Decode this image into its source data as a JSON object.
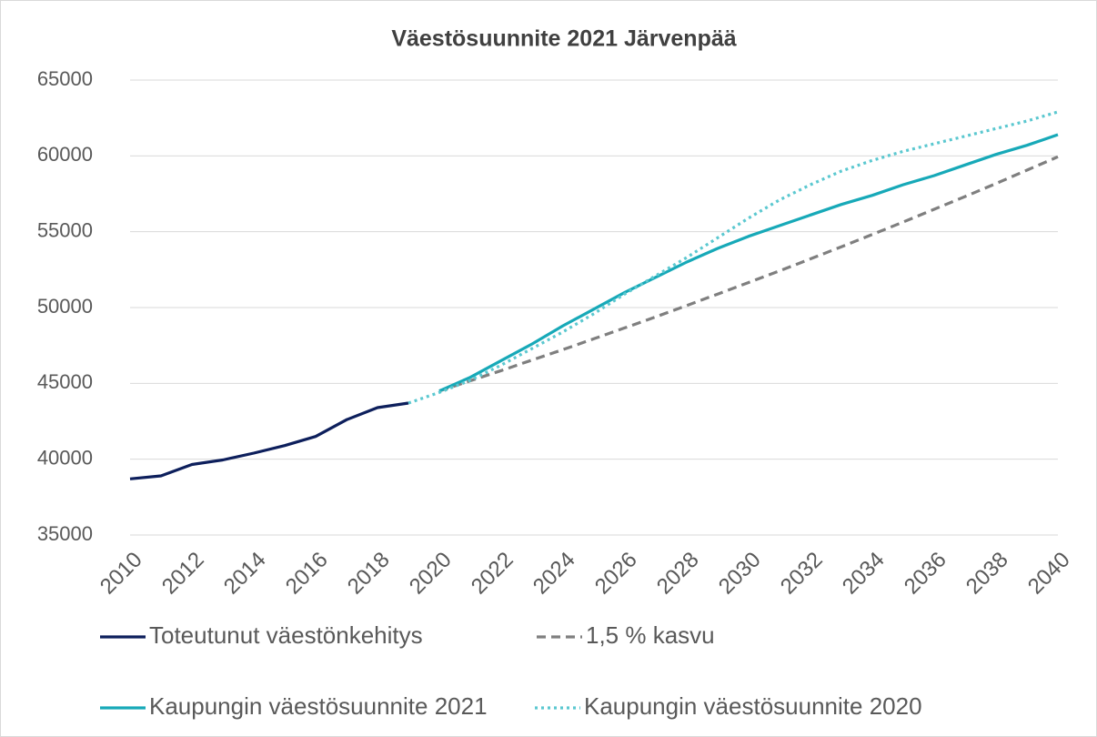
{
  "chart_data": {
    "type": "line",
    "title": "Väestösuunnite 2021 Järvenpää",
    "x": [
      2010,
      2011,
      2012,
      2013,
      2014,
      2015,
      2016,
      2017,
      2018,
      2019,
      2020,
      2021,
      2022,
      2023,
      2024,
      2025,
      2026,
      2027,
      2028,
      2029,
      2030,
      2031,
      2032,
      2033,
      2034,
      2035,
      2036,
      2037,
      2038,
      2039,
      2040
    ],
    "xlim": [
      2010,
      2040
    ],
    "xticks": [
      2010,
      2012,
      2014,
      2016,
      2018,
      2020,
      2022,
      2024,
      2026,
      2028,
      2030,
      2032,
      2034,
      2036,
      2038,
      2040
    ],
    "ylim": [
      35000,
      65000
    ],
    "yticks": [
      35000,
      40000,
      45000,
      50000,
      55000,
      60000,
      65000
    ],
    "grid": true,
    "legend": "bottom",
    "series": [
      {
        "name": "Toteutunut väestönkehitys",
        "color": "#0d1f5c",
        "dash": "solid",
        "values": [
          38700,
          38900,
          39650,
          39950,
          40400,
          40900,
          41500,
          42600,
          43400,
          43700,
          null,
          null,
          null,
          null,
          null,
          null,
          null,
          null,
          null,
          null,
          null,
          null,
          null,
          null,
          null,
          null,
          null,
          null,
          null,
          null,
          null
        ]
      },
      {
        "name": "1,5 % kasvu",
        "color": "#7f7f7f",
        "dash": "dashed",
        "values": [
          null,
          null,
          null,
          null,
          null,
          null,
          null,
          null,
          null,
          null,
          44500,
          45170,
          45840,
          46540,
          47230,
          47940,
          48660,
          49390,
          50130,
          50890,
          51650,
          52420,
          53210,
          54010,
          54820,
          55640,
          56480,
          57320,
          58180,
          59060,
          59940
        ]
      },
      {
        "name": "Kaupungin väestösuunnite 2021",
        "color": "#17a9b8",
        "dash": "solid",
        "values": [
          null,
          null,
          null,
          null,
          null,
          null,
          null,
          null,
          null,
          null,
          44500,
          45400,
          46500,
          47600,
          48800,
          49900,
          51000,
          52000,
          53000,
          53900,
          54700,
          55400,
          56100,
          56800,
          57400,
          58100,
          58700,
          59400,
          60100,
          60700,
          61400
        ]
      },
      {
        "name": "Kaupungin väestösuunnite 2020",
        "color": "#5bc8d0",
        "dash": "dotted",
        "values": [
          null,
          null,
          null,
          null,
          null,
          null,
          null,
          null,
          null,
          43700,
          44400,
          45200,
          46200,
          47300,
          48400,
          49600,
          50900,
          52100,
          53300,
          54600,
          55900,
          57100,
          58100,
          59000,
          59700,
          60300,
          60800,
          61300,
          61800,
          62300,
          62900
        ]
      }
    ]
  }
}
